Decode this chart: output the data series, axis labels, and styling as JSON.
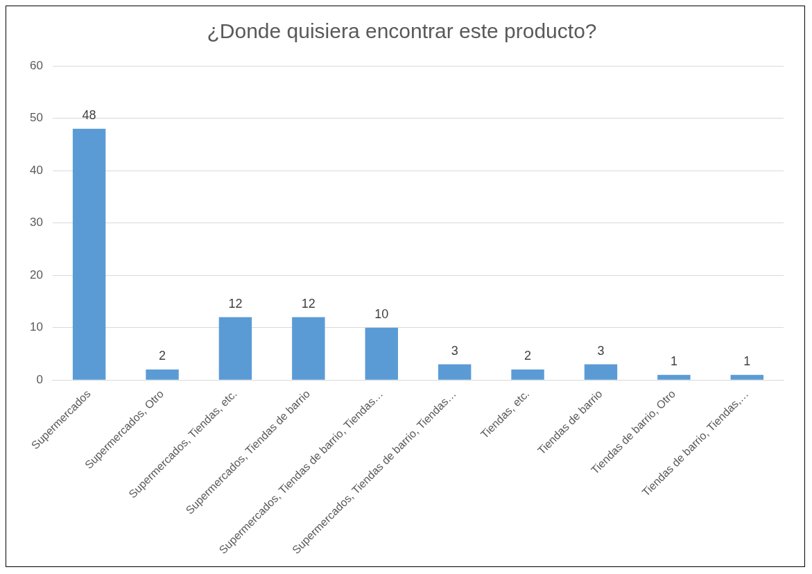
{
  "chart_data": {
    "type": "bar",
    "title": "¿Donde quisiera encontrar este producto?",
    "categories": [
      "Supermercados",
      "Supermercados, Otro",
      "Supermercados, Tiendas, etc.",
      "Supermercados, Tiendas de barrio",
      "Supermercados, Tiendas de barrio, Tiendas…",
      "Supermercados, Tiendas de barrio, Tiendas…",
      "Tiendas, etc.",
      "Tiendas de barrio",
      "Tiendas de barrio, Otro",
      "Tiendas de barrio, Tiendas,…"
    ],
    "values": [
      48,
      2,
      12,
      12,
      10,
      3,
      2,
      3,
      1,
      1
    ],
    "color": "#5b9bd5",
    "ylim": [
      0,
      60
    ],
    "yticks": [
      0,
      10,
      20,
      30,
      40,
      50,
      60
    ],
    "grid": "y",
    "data_labels": true
  }
}
